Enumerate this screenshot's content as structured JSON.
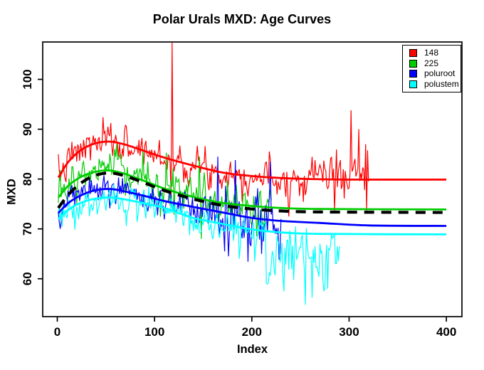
{
  "title": "Polar Urals MXD: Age Curves",
  "axes": {
    "xlabel": "Index",
    "ylabel": "MXD",
    "x_ticks": [
      0,
      100,
      200,
      300,
      400
    ],
    "y_ticks": [
      60,
      70,
      80,
      90,
      100
    ]
  },
  "legend": {
    "items": [
      {
        "label": "148",
        "color": "#FF0000"
      },
      {
        "label": "225",
        "color": "#00CC00"
      },
      {
        "label": "poluroot",
        "color": "#0000FF"
      },
      {
        "label": "polustem",
        "color": "#00FFFF"
      }
    ]
  },
  "chart_data": {
    "type": "line",
    "title": "Polar Urals MXD: Age Curves",
    "xlabel": "Index",
    "ylabel": "MXD",
    "xlim": [
      -15,
      416
    ],
    "ylim": [
      52.4,
      107.5
    ],
    "grid": false,
    "legend_position": "top-right",
    "series": [
      {
        "name": "148",
        "color": "#FF0000",
        "line": "solid",
        "line_width": 2.8,
        "smooth": [
          [
            1,
            80.3
          ],
          [
            12,
            83.6
          ],
          [
            25,
            85.9
          ],
          [
            40,
            87.2
          ],
          [
            55,
            87.5
          ],
          [
            70,
            86.9
          ],
          [
            90,
            85.6
          ],
          [
            110,
            84.3
          ],
          [
            140,
            82.7
          ],
          [
            170,
            81.3
          ],
          [
            200,
            80.6
          ],
          [
            230,
            80.2
          ],
          [
            260,
            80.0
          ],
          [
            300,
            79.9
          ],
          [
            400,
            79.9
          ]
        ],
        "noise": {
          "seed": 7,
          "from": 1,
          "to": 320,
          "rho": 0.3,
          "segments": [
            {
              "from": 1,
              "to": 259,
              "sd": 1.7,
              "bias": 0
            },
            {
              "from": 260,
              "to": 320,
              "sd": 2.5,
              "bias": 1.2
            }
          ],
          "spikes": [
            [
              117,
              76.5
            ],
            [
              118,
              107.4
            ],
            [
              119,
              84
            ],
            [
              238,
              72.5
            ],
            [
              285,
              73.6
            ],
            [
              302,
              93.8
            ],
            [
              310,
              90
            ],
            [
              317,
              87
            ],
            [
              318,
              73.5
            ],
            [
              320,
              79.5
            ]
          ]
        }
      },
      {
        "name": "225",
        "color": "#00CC00",
        "line": "solid",
        "line_width": 2.8,
        "smooth": [
          [
            1,
            76.3
          ],
          [
            12,
            78.8
          ],
          [
            25,
            80.5
          ],
          [
            40,
            81.5
          ],
          [
            55,
            81.7
          ],
          [
            70,
            81.0
          ],
          [
            90,
            79.6
          ],
          [
            110,
            78.1
          ],
          [
            140,
            76.4
          ],
          [
            170,
            75.2
          ],
          [
            200,
            74.6
          ],
          [
            230,
            74.2
          ],
          [
            270,
            74.0
          ],
          [
            400,
            73.9
          ]
        ],
        "noise": {
          "seed": 13,
          "from": 1,
          "to": 220,
          "rho": 0.3,
          "segments": [
            {
              "from": 1,
              "to": 54,
              "sd": 1.6,
              "bias": 0
            },
            {
              "from": 55,
              "to": 135,
              "sd": 2.3,
              "bias": 0
            },
            {
              "from": 136,
              "to": 220,
              "sd": 1.8,
              "bias": 0
            }
          ],
          "spikes": [
            [
              88,
              86
            ],
            [
              112,
              85.3
            ],
            [
              120,
              72.8
            ],
            [
              146,
              84.5
            ],
            [
              148,
              68
            ],
            [
              205,
              68.5
            ]
          ]
        }
      },
      {
        "name": "poluroot",
        "color": "#0000FF",
        "line": "solid",
        "line_width": 2.8,
        "smooth": [
          [
            1,
            73.2
          ],
          [
            12,
            75.3
          ],
          [
            25,
            76.8
          ],
          [
            40,
            77.8
          ],
          [
            55,
            78.0
          ],
          [
            70,
            77.5
          ],
          [
            90,
            76.6
          ],
          [
            110,
            75.6
          ],
          [
            140,
            74.4
          ],
          [
            170,
            73.3
          ],
          [
            200,
            72.2
          ],
          [
            230,
            71.6
          ],
          [
            270,
            71.2
          ],
          [
            320,
            70.7
          ],
          [
            400,
            70.6
          ]
        ],
        "noise": {
          "seed": 5,
          "from": 1,
          "to": 230,
          "rho": 0.3,
          "segments": [
            {
              "from": 1,
              "to": 139,
              "sd": 1.6,
              "bias": 0
            },
            {
              "from": 140,
              "to": 230,
              "sd": 2.5,
              "bias": -0.3
            }
          ],
          "spikes": [
            [
              165,
              84.5
            ],
            [
              176,
              64.5
            ],
            [
              183,
              83.8
            ],
            [
              196,
              63.4
            ],
            [
              210,
              65
            ],
            [
              219,
              83.5
            ],
            [
              230,
              72
            ]
          ]
        }
      },
      {
        "name": "polustem",
        "color": "#00FFFF",
        "line": "solid",
        "line_width": 2.8,
        "smooth": [
          [
            1,
            72.0
          ],
          [
            12,
            73.9
          ],
          [
            25,
            75.3
          ],
          [
            40,
            76.1
          ],
          [
            55,
            76.3
          ],
          [
            70,
            75.9
          ],
          [
            90,
            75.1
          ],
          [
            110,
            74.2
          ],
          [
            140,
            72.2
          ],
          [
            170,
            71.0
          ],
          [
            200,
            69.9
          ],
          [
            230,
            69.3
          ],
          [
            270,
            69.0
          ],
          [
            400,
            68.9
          ]
        ],
        "noise": {
          "seed": 3,
          "from": 1,
          "to": 290,
          "rho": 0.3,
          "segments": [
            {
              "from": 1,
              "to": 149,
              "sd": 1.6,
              "bias": 0
            },
            {
              "from": 150,
              "to": 214,
              "sd": 1.9,
              "bias": -0.5
            },
            {
              "from": 215,
              "to": 290,
              "sd": 3.0,
              "bias": -4.5
            }
          ],
          "spikes": [
            [
              187,
              64
            ],
            [
              203,
              63.5
            ],
            [
              233,
              57.5
            ],
            [
              245,
              70.5
            ],
            [
              255,
              54.8
            ],
            [
              262,
              56.2
            ],
            [
              270,
              67
            ],
            [
              278,
              58
            ],
            [
              285,
              69
            ],
            [
              290,
              66.5
            ]
          ]
        }
      },
      {
        "name": "mean age curve",
        "color": "#000000",
        "line": "dashed",
        "line_width": 4.2,
        "smooth": [
          [
            1,
            74.2
          ],
          [
            12,
            77.0
          ],
          [
            25,
            79.3
          ],
          [
            40,
            80.8
          ],
          [
            55,
            81.2
          ],
          [
            70,
            80.6
          ],
          [
            90,
            79.2
          ],
          [
            110,
            77.7
          ],
          [
            140,
            76.0
          ],
          [
            170,
            74.7
          ],
          [
            200,
            74.0
          ],
          [
            230,
            73.6
          ],
          [
            270,
            73.4
          ],
          [
            400,
            73.3
          ]
        ]
      }
    ]
  }
}
